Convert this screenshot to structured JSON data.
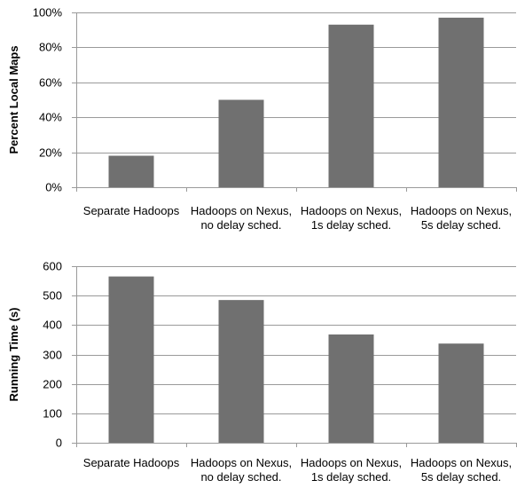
{
  "chart_data": [
    {
      "type": "bar",
      "categories": [
        [
          "Separate Hadoops"
        ],
        [
          "Hadoops on Nexus,",
          "no delay sched."
        ],
        [
          "Hadoops on Nexus,",
          "1s delay sched."
        ],
        [
          "Hadoops on Nexus,",
          "5s delay sched."
        ]
      ],
      "values": [
        18,
        50,
        93,
        97
      ],
      "title": "",
      "xlabel": "",
      "ylabel": "Percent Local Maps",
      "ylim": [
        0,
        100
      ],
      "yticks": [
        0,
        20,
        40,
        60,
        80,
        100
      ],
      "ytick_labels": [
        "0%",
        "20%",
        "40%",
        "60%",
        "80%",
        "100%"
      ],
      "grid": true,
      "bar_color": "#707070"
    },
    {
      "type": "bar",
      "categories": [
        [
          "Separate Hadoops"
        ],
        [
          "Hadoops on Nexus,",
          "no delay sched."
        ],
        [
          "Hadoops on Nexus,",
          "1s delay sched."
        ],
        [
          "Hadoops on Nexus,",
          "5s delay sched."
        ]
      ],
      "values": [
        565,
        485,
        368,
        337
      ],
      "title": "",
      "xlabel": "",
      "ylabel": "Running Time (s)",
      "ylim": [
        0,
        600
      ],
      "yticks": [
        0,
        100,
        200,
        300,
        400,
        500,
        600
      ],
      "ytick_labels": [
        "0",
        "100",
        "200",
        "300",
        "400",
        "500",
        "600"
      ],
      "grid": true,
      "bar_color": "#707070"
    }
  ]
}
